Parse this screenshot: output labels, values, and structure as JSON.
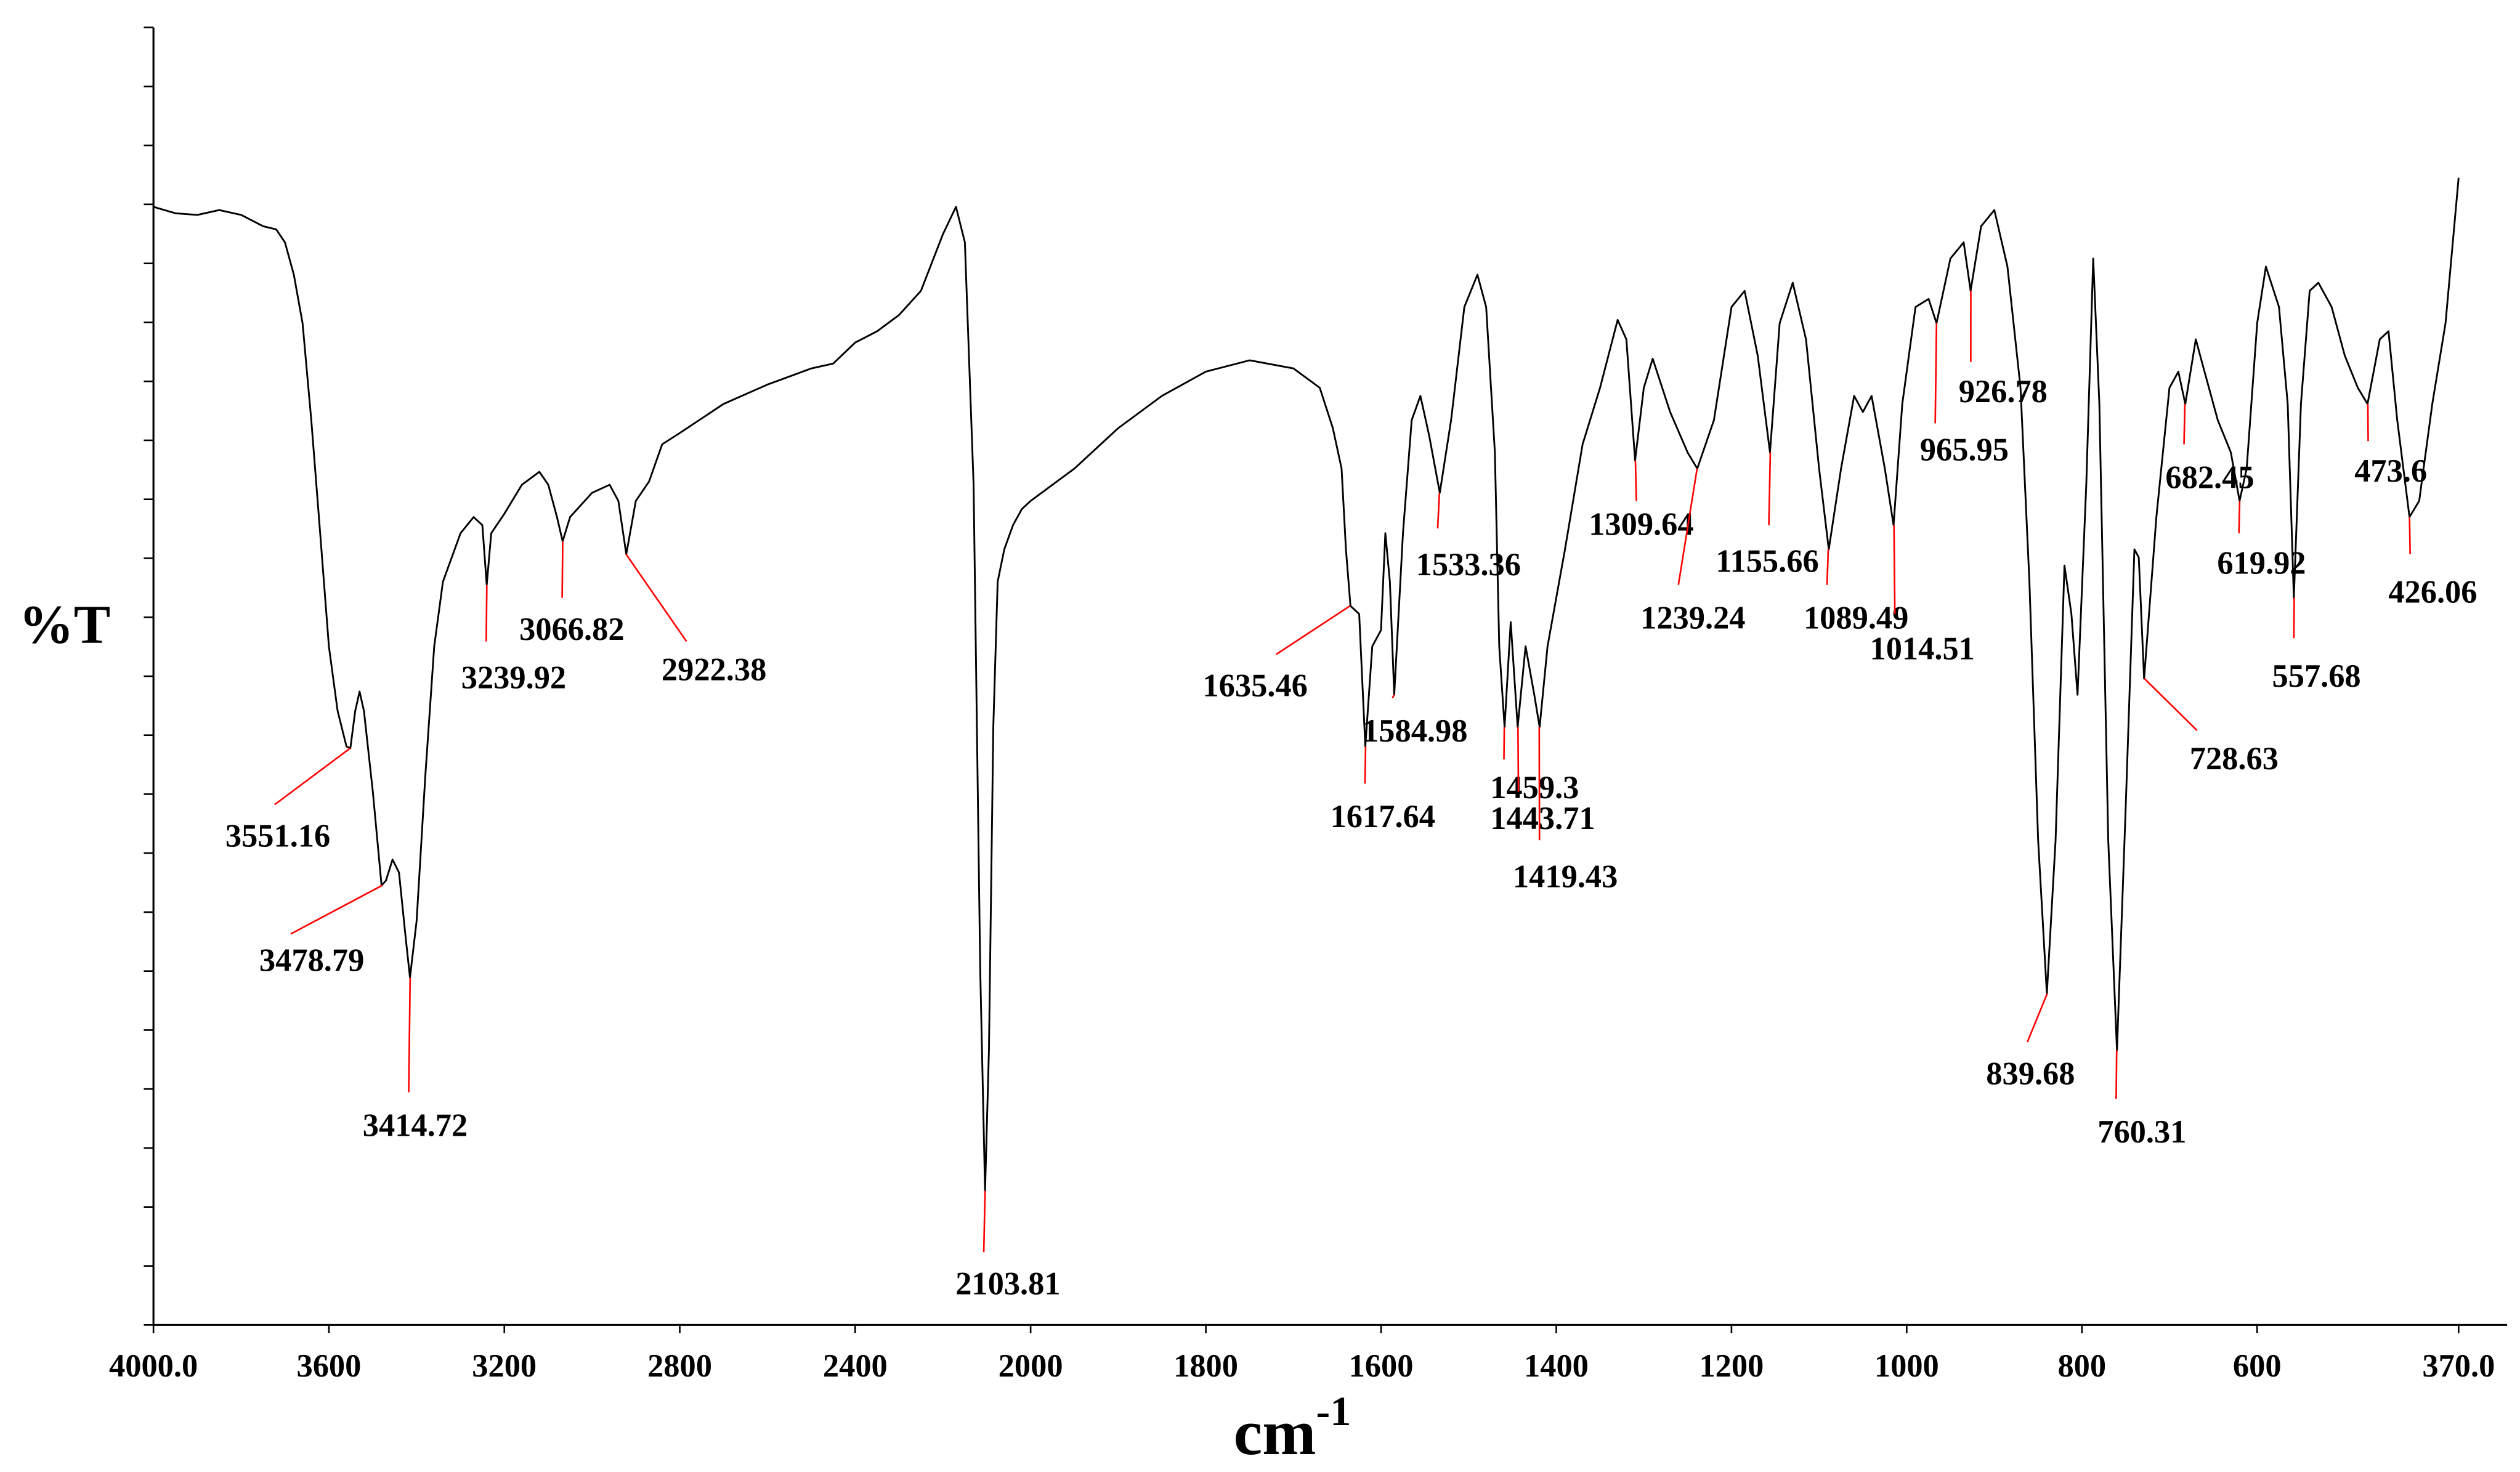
{
  "chart_data": {
    "type": "line",
    "y_label": "%T",
    "x_label": {
      "text": "cm",
      "superscript": "-1"
    },
    "xlim": [
      4000,
      370
    ],
    "x_break": 2000,
    "xticks": [
      {
        "value": 4000,
        "label": "4000.0"
      },
      3600,
      3200,
      2800,
      2400,
      2000,
      1800,
      1600,
      1400,
      1200,
      1000,
      800,
      600,
      {
        "value": 370,
        "label": "370.0"
      }
    ],
    "ylim": [
      0,
      803
    ],
    "yticks": [
      0,
      36.5,
      73,
      109.5,
      146,
      182.5,
      219,
      255.5,
      292,
      328.5,
      365,
      401.5,
      438,
      474.5,
      511,
      547.5,
      584,
      620.5,
      657,
      693.5,
      730,
      766.5,
      803
    ],
    "color": "#000000",
    "annotation_color": "#ff0000",
    "x": [
      4000,
      3950,
      3900,
      3850,
      3800,
      3750,
      3720,
      3700,
      3680,
      3660,
      3640,
      3620,
      3600,
      3580,
      3560,
      3551,
      3540,
      3530,
      3520,
      3500,
      3480,
      3470,
      3455,
      3440,
      3425,
      3415,
      3400,
      3380,
      3360,
      3340,
      3300,
      3270,
      3250,
      3240,
      3230,
      3200,
      3160,
      3120,
      3100,
      3080,
      3067,
      3050,
      3000,
      2960,
      2940,
      2922,
      2900,
      2870,
      2840,
      2800,
      2700,
      2600,
      2500,
      2450,
      2400,
      2350,
      2300,
      2250,
      2200,
      2170,
      2150,
      2130,
      2115,
      2104,
      2095,
      2085,
      2075,
      2060,
      2040,
      2020,
      2000,
      1950,
      1900,
      1850,
      1800,
      1750,
      1700,
      1670,
      1655,
      1645,
      1640,
      1635,
      1625,
      1618,
      1610,
      1600,
      1595,
      1590,
      1585,
      1575,
      1565,
      1555,
      1545,
      1533,
      1520,
      1505,
      1490,
      1480,
      1470,
      1465,
      1459,
      1452,
      1444,
      1435,
      1425,
      1419,
      1410,
      1390,
      1370,
      1350,
      1330,
      1320,
      1310,
      1300,
      1290,
      1270,
      1250,
      1239,
      1220,
      1200,
      1185,
      1170,
      1156,
      1145,
      1130,
      1115,
      1100,
      1089,
      1075,
      1060,
      1050,
      1040,
      1025,
      1015,
      1005,
      990,
      975,
      966,
      950,
      935,
      927,
      915,
      900,
      885,
      870,
      860,
      850,
      840,
      830,
      820,
      812,
      805,
      795,
      787,
      780,
      770,
      760,
      750,
      740,
      735,
      729,
      715,
      700,
      690,
      682,
      670,
      660,
      645,
      630,
      620,
      612,
      600,
      590,
      575,
      565,
      558,
      550,
      540,
      530,
      515,
      500,
      485,
      474,
      460,
      450,
      440,
      426,
      415,
      400,
      385,
      370
    ],
    "values": [
      692,
      688,
      687,
      690,
      687,
      680,
      678,
      670,
      650,
      620,
      560,
      490,
      420,
      380,
      358,
      357,
      380,
      392,
      380,
      330,
      272,
      275,
      288,
      280,
      240,
      215,
      250,
      340,
      420,
      460,
      490,
      500,
      495,
      458,
      490,
      502,
      520,
      528,
      520,
      500,
      485,
      500,
      515,
      520,
      510,
      477,
      510,
      522,
      545,
      552,
      570,
      582,
      592,
      595,
      608,
      615,
      625,
      640,
      675,
      692,
      670,
      520,
      220,
      83,
      170,
      370,
      460,
      480,
      495,
      505,
      510,
      530,
      555,
      575,
      590,
      597,
      592,
      580,
      555,
      530,
      480,
      445,
      440,
      358,
      420,
      430,
      490,
      460,
      390,
      490,
      560,
      575,
      550,
      515,
      560,
      630,
      650,
      630,
      540,
      420,
      370,
      435,
      370,
      420,
      390,
      370,
      420,
      480,
      545,
      580,
      622,
      610,
      535,
      580,
      598,
      565,
      540,
      530,
      560,
      630,
      640,
      600,
      540,
      620,
      645,
      610,
      530,
      480,
      530,
      575,
      565,
      575,
      530,
      495,
      570,
      630,
      635,
      620,
      660,
      670,
      640,
      680,
      690,
      655,
      580,
      460,
      300,
      205,
      300,
      470,
      440,
      390,
      520,
      660,
      570,
      300,
      170,
      320,
      480,
      475,
      400,
      500,
      580,
      590,
      570,
      610,
      590,
      560,
      540,
      510,
      530,
      620,
      655,
      630,
      570,
      450,
      570,
      640,
      645,
      630,
      600,
      580,
      570,
      610,
      615,
      560,
      500,
      510,
      570,
      620,
      710
    ],
    "annotations": [
      {
        "x": 3551.16,
        "y": 357
      },
      {
        "x": 3478.79,
        "y": 272
      },
      {
        "x": 3414.72,
        "y": 215
      },
      {
        "x": 3239.92,
        "y": 458
      },
      {
        "x": 3066.82,
        "y": 485
      },
      {
        "x": 2922.38,
        "y": 477
      },
      {
        "x": 2103.81,
        "y": 83
      },
      {
        "x": 1635.46,
        "y": 445
      },
      {
        "x": 1617.64,
        "y": 358
      },
      {
        "x": 1584.98,
        "y": 390
      },
      {
        "x": 1533.36,
        "y": 515
      },
      {
        "x": 1459.3,
        "y": 370
      },
      {
        "x": 1443.71,
        "y": 370
      },
      {
        "x": 1419.43,
        "y": 370
      },
      {
        "x": 1309.64,
        "y": 535
      },
      {
        "x": 1239.24,
        "y": 530
      },
      {
        "x": 1155.66,
        "y": 540
      },
      {
        "x": 1089.49,
        "y": 480
      },
      {
        "x": 1014.51,
        "y": 495
      },
      {
        "x": 965.95,
        "y": 620
      },
      {
        "x": 926.78,
        "y": 640
      },
      {
        "x": 839.68,
        "y": 205
      },
      {
        "x": 760.31,
        "y": 170
      },
      {
        "x": 728.63,
        "y": 400
      },
      {
        "x": 682.45,
        "y": 570
      },
      {
        "x": 619.92,
        "y": 510
      },
      {
        "x": 557.68,
        "y": 450
      },
      {
        "x": 473.6,
        "y": 570
      },
      {
        "x": 426.06,
        "y": 500
      }
    ]
  }
}
